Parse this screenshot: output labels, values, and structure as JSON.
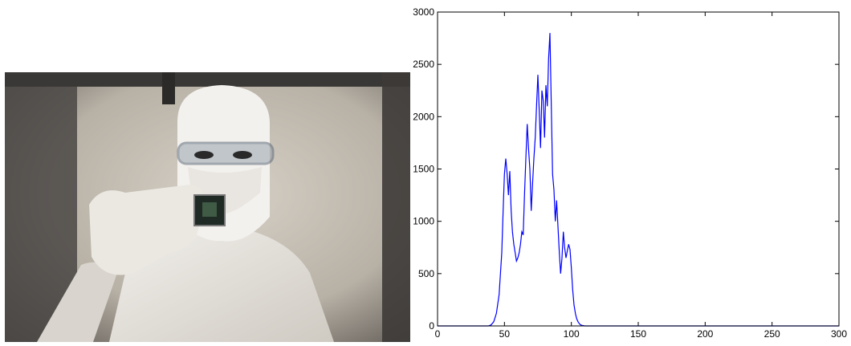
{
  "photo": {
    "subject": "person in cleanroom suit holding a microchip"
  },
  "chart_data": {
    "type": "line",
    "title": "",
    "xlabel": "",
    "ylabel": "",
    "xlim": [
      0,
      300
    ],
    "ylim": [
      0,
      3000
    ],
    "xticks": [
      0,
      50,
      100,
      150,
      200,
      250,
      300
    ],
    "yticks": [
      0,
      500,
      1000,
      1500,
      2000,
      2500,
      3000
    ],
    "grid": false,
    "series": [
      {
        "color": "#0000ff",
        "x": [
          0,
          38,
          40,
          42,
          44,
          46,
          48,
          49,
          50,
          51,
          52,
          53,
          54,
          55,
          56,
          57,
          58,
          59,
          60,
          61,
          62,
          63,
          64,
          65,
          66,
          67,
          68,
          69,
          70,
          71,
          72,
          73,
          74,
          75,
          76,
          77,
          78,
          79,
          80,
          81,
          82,
          83,
          84,
          85,
          86,
          87,
          88,
          89,
          90,
          91,
          92,
          93,
          94,
          95,
          96,
          97,
          98,
          99,
          100,
          101,
          102,
          103,
          104,
          105,
          106,
          107,
          108,
          109,
          110,
          112,
          114,
          300
        ],
        "y": [
          0,
          0,
          10,
          40,
          120,
          300,
          700,
          1100,
          1450,
          1600,
          1450,
          1250,
          1480,
          1100,
          900,
          780,
          700,
          620,
          650,
          700,
          780,
          900,
          870,
          1250,
          1600,
          1930,
          1700,
          1500,
          1100,
          1350,
          1600,
          1800,
          2100,
          2400,
          2050,
          1700,
          2250,
          2150,
          1800,
          2300,
          2100,
          2550,
          2800,
          2100,
          1450,
          1300,
          1000,
          1200,
          950,
          700,
          500,
          650,
          900,
          750,
          650,
          720,
          780,
          730,
          550,
          350,
          200,
          120,
          70,
          40,
          20,
          10,
          5,
          3,
          0,
          0,
          0,
          0
        ]
      }
    ]
  }
}
